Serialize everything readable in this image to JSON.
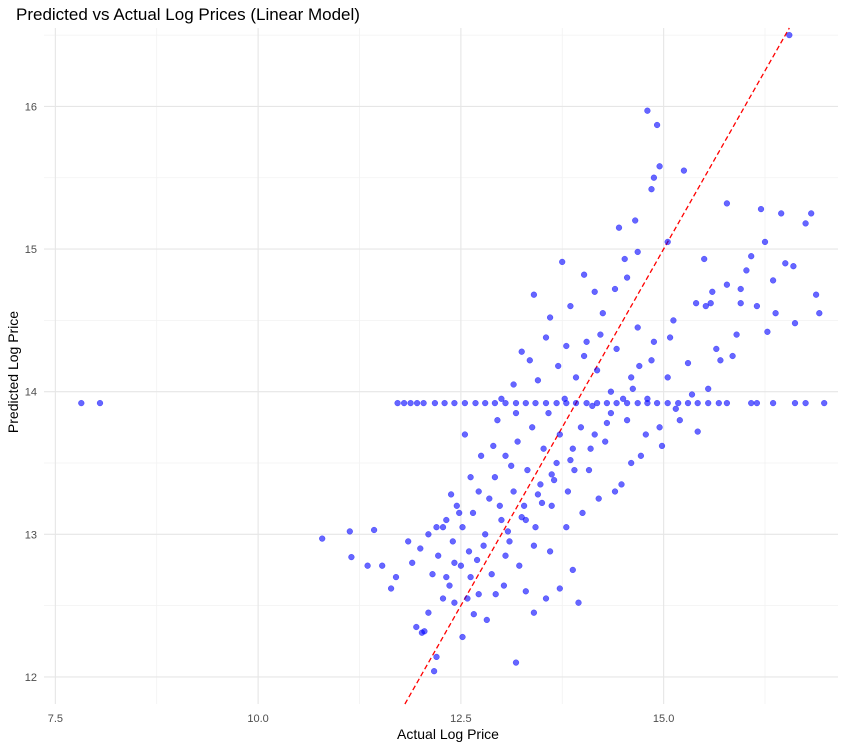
{
  "chart_data": {
    "type": "scatter",
    "title": "Predicted vs Actual Log Prices (Linear Model)",
    "xlabel": "Actual Log Price",
    "ylabel": "Predicted Log Price",
    "xlim": [
      7.36,
      17.15
    ],
    "ylim": [
      11.81,
      16.55
    ],
    "x_ticks": [
      7.5,
      10.0,
      12.5,
      15.0
    ],
    "x_tick_labels": [
      "7.5",
      "10.0",
      "12.5",
      "15.0"
    ],
    "y_ticks": [
      12,
      13,
      14,
      15,
      16
    ],
    "y_tick_labels": [
      "12",
      "13",
      "14",
      "15",
      "16"
    ],
    "grid": true,
    "point_color": "#0000ff",
    "point_opacity": 0.6,
    "reference_line": {
      "type": "identity",
      "style": "dashed",
      "color": "#ff0000"
    },
    "series": [
      {
        "points": [
          [
            7.82,
            13.92
          ],
          [
            8.05,
            13.92
          ],
          [
            10.79,
            12.97
          ],
          [
            11.13,
            13.02
          ],
          [
            11.15,
            12.84
          ],
          [
            11.43,
            13.03
          ],
          [
            11.35,
            12.78
          ],
          [
            11.53,
            12.78
          ],
          [
            11.64,
            12.62
          ],
          [
            11.7,
            12.7
          ],
          [
            11.85,
            12.95
          ],
          [
            11.9,
            12.8
          ],
          [
            11.95,
            12.35
          ],
          [
            12.02,
            12.31
          ],
          [
            12.05,
            12.32
          ],
          [
            12.1,
            12.45
          ],
          [
            12.17,
            12.04
          ],
          [
            12.2,
            12.14
          ],
          [
            12.28,
            12.55
          ],
          [
            12.36,
            12.64
          ],
          [
            12.42,
            12.52
          ],
          [
            12.52,
            12.28
          ],
          [
            12.58,
            12.55
          ],
          [
            12.66,
            12.44
          ],
          [
            12.72,
            12.58
          ],
          [
            12.82,
            12.4
          ],
          [
            12.93,
            12.58
          ],
          [
            13.03,
            12.64
          ],
          [
            13.18,
            12.1
          ],
          [
            13.3,
            12.6
          ],
          [
            13.4,
            12.45
          ],
          [
            13.55,
            12.55
          ],
          [
            13.72,
            12.62
          ],
          [
            13.95,
            12.52
          ],
          [
            13.88,
            12.75
          ],
          [
            12.0,
            12.9
          ],
          [
            12.1,
            13.0
          ],
          [
            12.22,
            12.85
          ],
          [
            12.32,
            13.1
          ],
          [
            12.4,
            12.95
          ],
          [
            12.45,
            13.2
          ],
          [
            12.52,
            13.05
          ],
          [
            12.6,
            12.88
          ],
          [
            12.65,
            13.15
          ],
          [
            12.72,
            13.3
          ],
          [
            12.8,
            13.0
          ],
          [
            12.85,
            13.25
          ],
          [
            12.92,
            13.4
          ],
          [
            13.0,
            13.1
          ],
          [
            13.05,
            13.55
          ],
          [
            13.1,
            12.95
          ],
          [
            13.15,
            13.3
          ],
          [
            13.2,
            13.65
          ],
          [
            13.28,
            13.2
          ],
          [
            13.32,
            13.45
          ],
          [
            13.38,
            13.75
          ],
          [
            13.42,
            13.05
          ],
          [
            13.48,
            13.35
          ],
          [
            13.52,
            13.6
          ],
          [
            13.58,
            13.85
          ],
          [
            13.62,
            13.2
          ],
          [
            13.68,
            13.5
          ],
          [
            13.72,
            13.7
          ],
          [
            13.78,
            13.95
          ],
          [
            13.82,
            13.3
          ],
          [
            13.88,
            13.6
          ],
          [
            13.92,
            14.1
          ],
          [
            13.98,
            13.75
          ],
          [
            14.02,
            14.25
          ],
          [
            14.08,
            13.45
          ],
          [
            14.12,
            13.9
          ],
          [
            14.18,
            14.15
          ],
          [
            14.22,
            14.4
          ],
          [
            14.28,
            13.65
          ],
          [
            14.35,
            14.0
          ],
          [
            14.42,
            14.3
          ],
          [
            14.48,
            13.35
          ],
          [
            14.55,
            13.8
          ],
          [
            14.6,
            14.1
          ],
          [
            14.68,
            14.45
          ],
          [
            14.72,
            13.55
          ],
          [
            14.8,
            13.95
          ],
          [
            14.88,
            14.35
          ],
          [
            14.95,
            13.75
          ],
          [
            15.05,
            14.1
          ],
          [
            15.12,
            14.5
          ],
          [
            15.2,
            13.8
          ],
          [
            15.3,
            14.2
          ],
          [
            15.42,
            13.72
          ],
          [
            15.52,
            14.6
          ],
          [
            15.65,
            14.3
          ],
          [
            15.78,
            14.75
          ],
          [
            15.9,
            14.4
          ],
          [
            16.02,
            14.85
          ],
          [
            16.15,
            14.6
          ],
          [
            16.25,
            15.05
          ],
          [
            16.38,
            14.55
          ],
          [
            16.5,
            14.9
          ],
          [
            16.62,
            14.48
          ],
          [
            16.75,
            15.18
          ],
          [
            16.82,
            15.25
          ],
          [
            16.92,
            14.55
          ],
          [
            16.88,
            14.68
          ],
          [
            16.45,
            15.25
          ],
          [
            16.2,
            15.28
          ],
          [
            16.55,
            16.5
          ],
          [
            14.8,
            15.97
          ],
          [
            14.92,
            15.87
          ],
          [
            14.95,
            15.58
          ],
          [
            14.88,
            15.5
          ],
          [
            14.85,
            15.42
          ],
          [
            15.25,
            15.55
          ],
          [
            14.65,
            15.2
          ],
          [
            15.05,
            15.05
          ],
          [
            15.78,
            15.32
          ],
          [
            14.52,
            14.93
          ],
          [
            13.75,
            14.91
          ],
          [
            14.02,
            14.82
          ],
          [
            14.4,
            14.72
          ],
          [
            14.68,
            14.98
          ],
          [
            15.5,
            14.93
          ],
          [
            13.4,
            14.68
          ],
          [
            13.6,
            14.52
          ],
          [
            13.85,
            14.6
          ],
          [
            14.15,
            14.7
          ],
          [
            13.25,
            14.28
          ],
          [
            13.55,
            14.38
          ],
          [
            13.8,
            14.32
          ],
          [
            14.25,
            14.55
          ],
          [
            14.55,
            14.8
          ],
          [
            12.55,
            13.7
          ],
          [
            12.75,
            13.55
          ],
          [
            12.95,
            13.8
          ],
          [
            13.15,
            14.05
          ],
          [
            13.35,
            14.22
          ],
          [
            12.62,
            13.4
          ],
          [
            12.48,
            13.15
          ],
          [
            12.38,
            13.28
          ],
          [
            12.28,
            13.05
          ],
          [
            12.15,
            12.72
          ],
          [
            12.32,
            12.7
          ],
          [
            12.5,
            12.78
          ],
          [
            12.7,
            12.82
          ],
          [
            12.88,
            12.72
          ],
          [
            13.05,
            12.85
          ],
          [
            13.22,
            12.78
          ],
          [
            13.4,
            12.92
          ],
          [
            13.6,
            12.88
          ],
          [
            13.8,
            13.05
          ],
          [
            14.0,
            13.15
          ],
          [
            14.2,
            13.25
          ],
          [
            14.4,
            13.3
          ],
          [
            14.6,
            13.5
          ],
          [
            14.78,
            13.7
          ],
          [
            14.98,
            13.62
          ],
          [
            15.15,
            13.88
          ],
          [
            15.35,
            13.98
          ],
          [
            15.55,
            14.02
          ],
          [
            15.7,
            14.22
          ],
          [
            15.85,
            14.25
          ],
          [
            13.0,
            13.95
          ],
          [
            13.18,
            13.85
          ],
          [
            13.45,
            14.08
          ],
          [
            13.7,
            14.18
          ],
          [
            14.05,
            14.35
          ],
          [
            12.9,
            13.62
          ],
          [
            13.12,
            13.48
          ],
          [
            13.3,
            13.1
          ],
          [
            13.5,
            13.22
          ],
          [
            13.65,
            13.38
          ],
          [
            13.9,
            13.45
          ],
          [
            14.1,
            13.6
          ],
          [
            14.3,
            13.78
          ],
          [
            14.5,
            13.95
          ],
          [
            14.7,
            14.18
          ],
          [
            12.2,
            13.05
          ],
          [
            12.42,
            12.8
          ],
          [
            12.62,
            12.7
          ],
          [
            12.78,
            12.92
          ],
          [
            12.98,
            13.2
          ],
          [
            13.08,
            13.02
          ],
          [
            13.25,
            13.12
          ],
          [
            13.45,
            13.28
          ],
          [
            13.62,
            13.42
          ],
          [
            13.85,
            13.52
          ],
          [
            14.15,
            13.7
          ],
          [
            14.35,
            13.85
          ],
          [
            14.62,
            14.02
          ],
          [
            14.85,
            14.22
          ],
          [
            15.08,
            14.38
          ],
          [
            15.4,
            14.62
          ],
          [
            15.6,
            14.7
          ],
          [
            15.95,
            14.72
          ],
          [
            16.08,
            14.95
          ],
          [
            16.35,
            14.78
          ],
          [
            14.45,
            15.15
          ],
          [
            15.58,
            14.62
          ],
          [
            16.6,
            14.88
          ],
          [
            15.95,
            14.62
          ],
          [
            16.28,
            14.42
          ]
        ]
      },
      {
        "points": [
          [
            11.72,
            13.92
          ],
          [
            11.8,
            13.92
          ],
          [
            11.88,
            13.92
          ],
          [
            11.96,
            13.92
          ],
          [
            12.04,
            13.92
          ],
          [
            12.18,
            13.92
          ],
          [
            12.3,
            13.92
          ],
          [
            12.42,
            13.92
          ],
          [
            12.55,
            13.92
          ],
          [
            12.68,
            13.92
          ],
          [
            12.8,
            13.92
          ],
          [
            12.92,
            13.92
          ],
          [
            13.05,
            13.92
          ],
          [
            13.18,
            13.92
          ],
          [
            13.3,
            13.92
          ],
          [
            13.42,
            13.92
          ],
          [
            13.55,
            13.92
          ],
          [
            13.68,
            13.92
          ],
          [
            13.8,
            13.92
          ],
          [
            13.92,
            13.92
          ],
          [
            14.05,
            13.92
          ],
          [
            14.18,
            13.92
          ],
          [
            14.3,
            13.92
          ],
          [
            14.42,
            13.92
          ],
          [
            14.55,
            13.92
          ],
          [
            14.68,
            13.92
          ],
          [
            14.8,
            13.92
          ],
          [
            14.92,
            13.92
          ],
          [
            15.05,
            13.92
          ],
          [
            15.18,
            13.92
          ],
          [
            15.3,
            13.92
          ],
          [
            15.42,
            13.92
          ],
          [
            15.55,
            13.92
          ],
          [
            15.68,
            13.92
          ],
          [
            15.78,
            13.92
          ],
          [
            16.08,
            13.92
          ],
          [
            16.15,
            13.92
          ],
          [
            16.35,
            13.92
          ],
          [
            16.62,
            13.92
          ],
          [
            16.75,
            13.92
          ],
          [
            16.98,
            13.92
          ]
        ]
      }
    ]
  }
}
